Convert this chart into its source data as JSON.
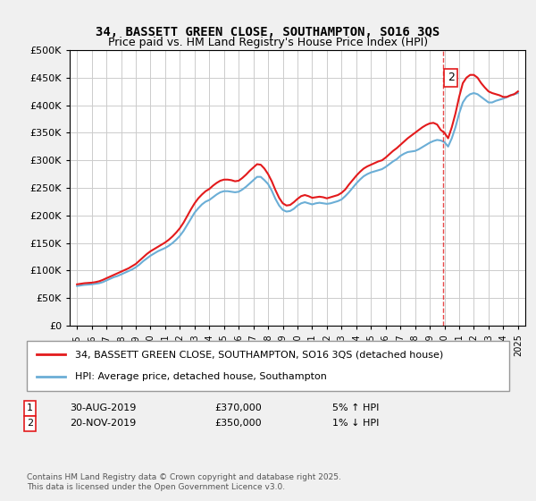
{
  "title": "34, BASSETT GREEN CLOSE, SOUTHAMPTON, SO16 3QS",
  "subtitle": "Price paid vs. HM Land Registry's House Price Index (HPI)",
  "ylabel_ticks": [
    "£0",
    "£50K",
    "£100K",
    "£150K",
    "£200K",
    "£250K",
    "£300K",
    "£350K",
    "£400K",
    "£450K",
    "£500K"
  ],
  "ytick_values": [
    0,
    50000,
    100000,
    150000,
    200000,
    250000,
    300000,
    350000,
    400000,
    450000,
    500000
  ],
  "xlim_start": 1995,
  "xlim_end": 2025.5,
  "ylim_min": 0,
  "ylim_max": 500000,
  "hpi_color": "#6baed6",
  "price_color": "#e31a1c",
  "annotation_color": "#e31a1c",
  "background_color": "#f0f0f0",
  "plot_bg_color": "#ffffff",
  "legend_label_price": "34, BASSETT GREEN CLOSE, SOUTHAMPTON, SO16 3QS (detached house)",
  "legend_label_hpi": "HPI: Average price, detached house, Southampton",
  "marker1_date": "30-AUG-2019",
  "marker1_price": "£370,000",
  "marker1_pct": "5% ↑ HPI",
  "marker1_label": "1",
  "marker2_date": "20-NOV-2019",
  "marker2_price": "£350,000",
  "marker2_pct": "1% ↓ HPI",
  "marker2_label": "2",
  "footer": "Contains HM Land Registry data © Crown copyright and database right 2025.\nThis data is licensed under the Open Government Licence v3.0.",
  "hpi_x": [
    1995.0,
    1995.25,
    1995.5,
    1995.75,
    1996.0,
    1996.25,
    1996.5,
    1996.75,
    1997.0,
    1997.25,
    1997.5,
    1997.75,
    1998.0,
    1998.25,
    1998.5,
    1998.75,
    1999.0,
    1999.25,
    1999.5,
    1999.75,
    2000.0,
    2000.25,
    2000.5,
    2000.75,
    2001.0,
    2001.25,
    2001.5,
    2001.75,
    2002.0,
    2002.25,
    2002.5,
    2002.75,
    2003.0,
    2003.25,
    2003.5,
    2003.75,
    2004.0,
    2004.25,
    2004.5,
    2004.75,
    2005.0,
    2005.25,
    2005.5,
    2005.75,
    2006.0,
    2006.25,
    2006.5,
    2006.75,
    2007.0,
    2007.25,
    2007.5,
    2007.75,
    2008.0,
    2008.25,
    2008.5,
    2008.75,
    2009.0,
    2009.25,
    2009.5,
    2009.75,
    2010.0,
    2010.25,
    2010.5,
    2010.75,
    2011.0,
    2011.25,
    2011.5,
    2011.75,
    2012.0,
    2012.25,
    2012.5,
    2012.75,
    2013.0,
    2013.25,
    2013.5,
    2013.75,
    2014.0,
    2014.25,
    2014.5,
    2014.75,
    2015.0,
    2015.25,
    2015.5,
    2015.75,
    2016.0,
    2016.25,
    2016.5,
    2016.75,
    2017.0,
    2017.25,
    2017.5,
    2017.75,
    2018.0,
    2018.25,
    2018.5,
    2018.75,
    2019.0,
    2019.25,
    2019.5,
    2019.75,
    2020.0,
    2020.25,
    2020.5,
    2020.75,
    2021.0,
    2021.25,
    2021.5,
    2021.75,
    2022.0,
    2022.25,
    2022.5,
    2022.75,
    2023.0,
    2023.25,
    2023.5,
    2023.75,
    2024.0,
    2024.25,
    2024.5,
    2024.75,
    2025.0
  ],
  "hpi_y": [
    72000,
    73000,
    74000,
    74500,
    75000,
    76000,
    77000,
    79000,
    82000,
    85000,
    88000,
    90000,
    93000,
    96000,
    99000,
    102000,
    106000,
    111000,
    117000,
    122000,
    127000,
    131000,
    135000,
    138000,
    141000,
    145000,
    150000,
    156000,
    163000,
    172000,
    183000,
    194000,
    205000,
    213000,
    220000,
    225000,
    228000,
    233000,
    238000,
    242000,
    244000,
    244000,
    243000,
    242000,
    243000,
    247000,
    252000,
    258000,
    264000,
    270000,
    270000,
    264000,
    257000,
    245000,
    230000,
    218000,
    210000,
    207000,
    208000,
    212000,
    218000,
    222000,
    224000,
    222000,
    220000,
    222000,
    223000,
    222000,
    221000,
    222000,
    224000,
    226000,
    229000,
    235000,
    242000,
    250000,
    258000,
    265000,
    271000,
    275000,
    278000,
    280000,
    282000,
    284000,
    288000,
    293000,
    298000,
    302000,
    308000,
    312000,
    315000,
    316000,
    317000,
    320000,
    324000,
    328000,
    332000,
    335000,
    337000,
    336000,
    333000,
    325000,
    340000,
    360000,
    385000,
    405000,
    415000,
    420000,
    422000,
    420000,
    415000,
    410000,
    405000,
    405000,
    408000,
    410000,
    412000,
    415000,
    418000,
    420000,
    422000
  ],
  "price_x": [
    1995.0,
    1995.25,
    1995.5,
    1995.75,
    1996.0,
    1996.25,
    1996.5,
    1996.75,
    1997.0,
    1997.25,
    1997.5,
    1997.75,
    1998.0,
    1998.25,
    1998.5,
    1998.75,
    1999.0,
    1999.25,
    1999.5,
    1999.75,
    2000.0,
    2000.25,
    2000.5,
    2000.75,
    2001.0,
    2001.25,
    2001.5,
    2001.75,
    2002.0,
    2002.25,
    2002.5,
    2002.75,
    2003.0,
    2003.25,
    2003.5,
    2003.75,
    2004.0,
    2004.25,
    2004.5,
    2004.75,
    2005.0,
    2005.25,
    2005.5,
    2005.75,
    2006.0,
    2006.25,
    2006.5,
    2006.75,
    2007.0,
    2007.25,
    2007.5,
    2007.75,
    2008.0,
    2008.25,
    2008.5,
    2008.75,
    2009.0,
    2009.25,
    2009.5,
    2009.75,
    2010.0,
    2010.25,
    2010.5,
    2010.75,
    2011.0,
    2011.25,
    2011.5,
    2011.75,
    2012.0,
    2012.25,
    2012.5,
    2012.75,
    2013.0,
    2013.25,
    2013.5,
    2013.75,
    2014.0,
    2014.25,
    2014.5,
    2014.75,
    2015.0,
    2015.25,
    2015.5,
    2015.75,
    2016.0,
    2016.25,
    2016.5,
    2016.75,
    2017.0,
    2017.25,
    2017.5,
    2017.75,
    2018.0,
    2018.25,
    2018.5,
    2018.75,
    2019.0,
    2019.25,
    2019.5,
    2019.75,
    2020.0,
    2020.25,
    2020.5,
    2020.75,
    2021.0,
    2021.25,
    2021.5,
    2021.75,
    2022.0,
    2022.25,
    2022.5,
    2022.75,
    2023.0,
    2023.25,
    2023.5,
    2023.75,
    2024.0,
    2024.25,
    2024.5,
    2024.75,
    2025.0
  ],
  "price_y": [
    75000,
    76000,
    77000,
    77500,
    78000,
    79000,
    80500,
    83000,
    86000,
    89000,
    92000,
    95000,
    98000,
    101000,
    104000,
    108000,
    112000,
    118000,
    124000,
    130000,
    135000,
    139000,
    143000,
    147000,
    151000,
    156000,
    162000,
    169000,
    177000,
    187000,
    199000,
    211000,
    222000,
    231000,
    238000,
    244000,
    248000,
    254000,
    259000,
    263000,
    265000,
    265000,
    264000,
    262000,
    263000,
    268000,
    274000,
    281000,
    287000,
    293000,
    292000,
    285000,
    275000,
    262000,
    246000,
    232000,
    222000,
    218000,
    219000,
    224000,
    230000,
    235000,
    237000,
    235000,
    232000,
    233000,
    234000,
    233000,
    231000,
    233000,
    235000,
    237000,
    241000,
    247000,
    256000,
    264000,
    272000,
    279000,
    285000,
    289000,
    292000,
    295000,
    298000,
    300000,
    305000,
    311000,
    317000,
    322000,
    328000,
    334000,
    340000,
    345000,
    350000,
    355000,
    360000,
    364000,
    367000,
    368000,
    365000,
    355000,
    350000,
    340000,
    360000,
    385000,
    415000,
    440000,
    450000,
    455000,
    455000,
    450000,
    440000,
    432000,
    425000,
    422000,
    420000,
    418000,
    415000,
    415000,
    418000,
    420000,
    425000
  ],
  "marker1_x": 2019.665,
  "marker2_x": 2019.9,
  "vline_x": 2019.9
}
